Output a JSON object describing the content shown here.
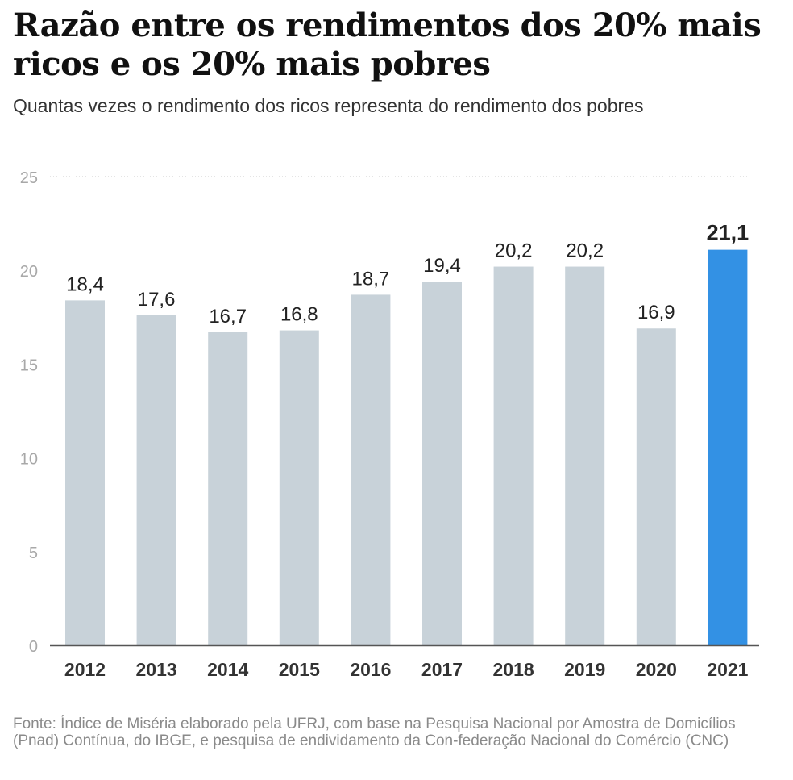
{
  "title": "Razão entre os rendimentos dos 20% mais ricos e os 20% mais pobres",
  "subtitle": "Quantas vezes o rendimento dos ricos representa do rendimento dos pobres",
  "source": "Fonte: Índice de Miséria elaborado pela UFRJ, com base na Pesquisa Nacional por Amostra de Domicílios (Pnad) Contínua, do IBGE, e pesquisa de endividamento da Con-federação Nacional do Comércio (CNC)",
  "colors": {
    "bar": "#c8d2d9",
    "highlight": "#3391e4",
    "axis": "#555555",
    "grid": "#c8c8c8",
    "tick_label": "#a8a8a8",
    "value_label": "#222222"
  },
  "chart_data": {
    "type": "bar",
    "title": "Razão entre os rendimentos dos 20% mais ricos e os 20% mais pobres",
    "xlabel": "",
    "ylabel": "",
    "categories": [
      "2012",
      "2013",
      "2014",
      "2015",
      "2016",
      "2017",
      "2018",
      "2019",
      "2020",
      "2021"
    ],
    "values": [
      18.4,
      17.6,
      16.7,
      16.8,
      18.7,
      19.4,
      20.2,
      20.2,
      16.9,
      21.1
    ],
    "value_labels": [
      "18,4",
      "17,6",
      "16,7",
      "16,8",
      "18,7",
      "19,4",
      "20,2",
      "20,2",
      "16,9",
      "21,1"
    ],
    "highlight_index": 9,
    "ylim": [
      0,
      25
    ],
    "yticks": [
      0,
      5,
      10,
      15,
      20,
      25
    ],
    "ytick_labels": [
      "0",
      "5",
      "10",
      "15",
      "20",
      "25"
    ],
    "grid": "top line only (dotted at 25)"
  }
}
